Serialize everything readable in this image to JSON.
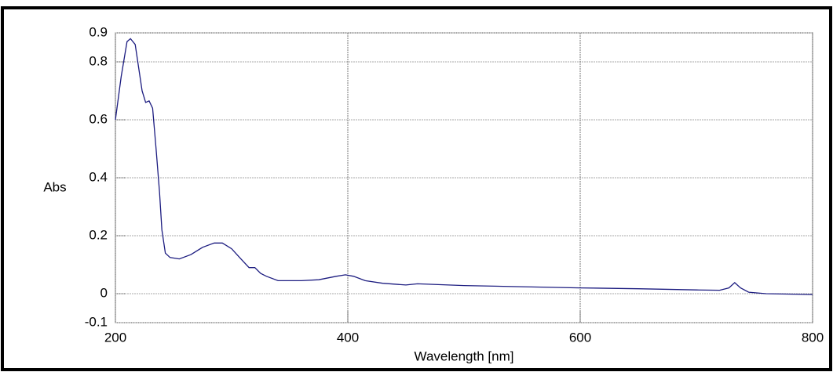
{
  "chart_data": {
    "type": "line",
    "x_label": "Wavelength [nm]",
    "y_label": "Abs",
    "x": [
      200,
      205,
      210,
      213,
      217,
      220,
      223,
      226,
      229,
      232,
      235,
      238,
      240,
      243,
      247,
      255,
      265,
      275,
      285,
      292,
      300,
      308,
      315,
      320,
      325,
      330,
      340,
      360,
      375,
      390,
      398,
      405,
      415,
      430,
      450,
      460,
      500,
      550,
      600,
      650,
      700,
      720,
      728,
      733,
      738,
      745,
      760,
      800
    ],
    "values": [
      0.6,
      0.75,
      0.87,
      0.88,
      0.86,
      0.78,
      0.7,
      0.66,
      0.665,
      0.64,
      0.5,
      0.35,
      0.22,
      0.14,
      0.125,
      0.12,
      0.135,
      0.16,
      0.175,
      0.175,
      0.155,
      0.12,
      0.09,
      0.09,
      0.07,
      0.06,
      0.045,
      0.045,
      0.048,
      0.06,
      0.065,
      0.06,
      0.045,
      0.036,
      0.03,
      0.034,
      0.028,
      0.024,
      0.02,
      0.017,
      0.013,
      0.012,
      0.02,
      0.038,
      0.02,
      0.005,
      0.0,
      -0.003
    ],
    "color": "#1c1c80",
    "xlim": [
      200,
      800
    ],
    "xticks": [
      200,
      400,
      600,
      800
    ],
    "ylim": [
      -0.1,
      0.9
    ],
    "yticks": [
      -0.1,
      0,
      0.2,
      0.4,
      0.6,
      0.8,
      0.9
    ],
    "grid": true
  }
}
